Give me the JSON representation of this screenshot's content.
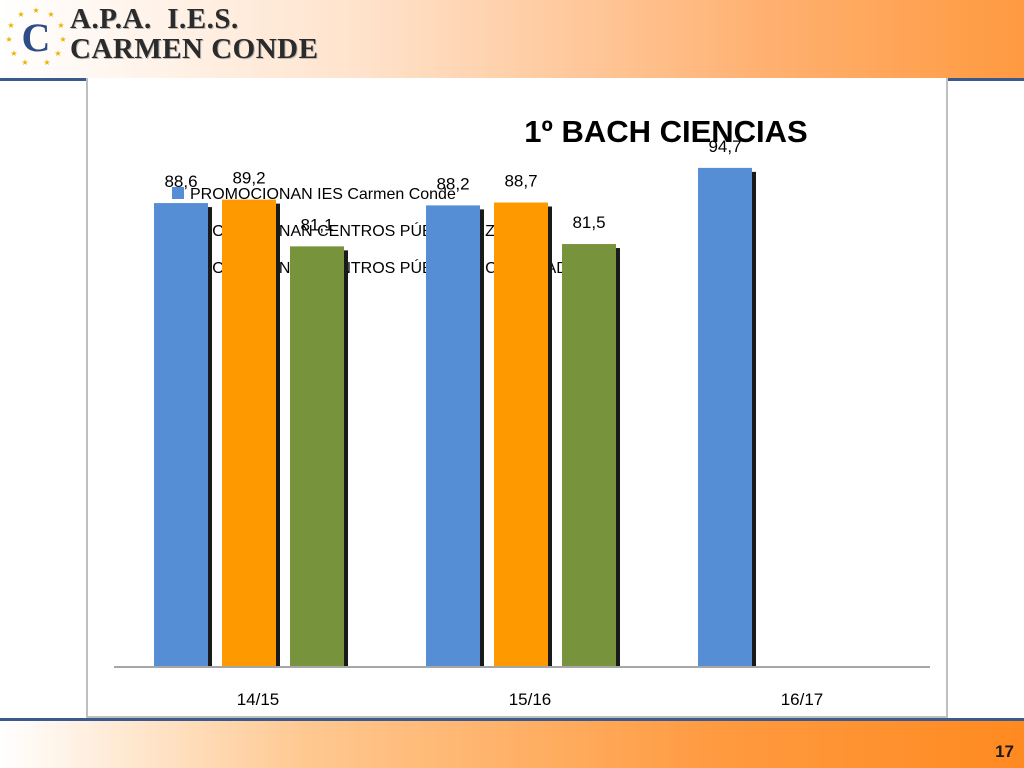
{
  "header": {
    "org_line1": "A.P.A.  I.E.S.",
    "org_line2": "CARMEN CONDE",
    "logo_letter": "C"
  },
  "colors": {
    "series_blue": "#558ED5",
    "series_orange": "#FF9900",
    "series_green": "#77933C",
    "header_gradient_end": "#ff9a40",
    "rule_blue": "#3a5a8c"
  },
  "chart_data": {
    "type": "bar",
    "title": "1º BACH CIENCIAS",
    "categories": [
      "14/15",
      "15/16",
      "16/17"
    ],
    "series": [
      {
        "name": "PROMOCIONAN IES Carmen Conde",
        "values": [
          88.6,
          88.2,
          94.7
        ],
        "labels": [
          "88,6",
          "88,2",
          "94,7"
        ]
      },
      {
        "name": "PROMOCIONAN CENTROS PÚBLICOS ZONA",
        "values": [
          89.2,
          88.7,
          null
        ],
        "labels": [
          "89,2",
          "88,7",
          null
        ]
      },
      {
        "name": "PROMOCIONAN CENTROS PÚBLICOS C. DE MADRID",
        "values": [
          81.1,
          81.5,
          null
        ],
        "labels": [
          "81,1",
          "81,5",
          null
        ]
      }
    ],
    "legend_position": "top-left",
    "grid": false,
    "xlabel": "",
    "ylabel": ""
  },
  "footer": {
    "page_number": "17"
  }
}
